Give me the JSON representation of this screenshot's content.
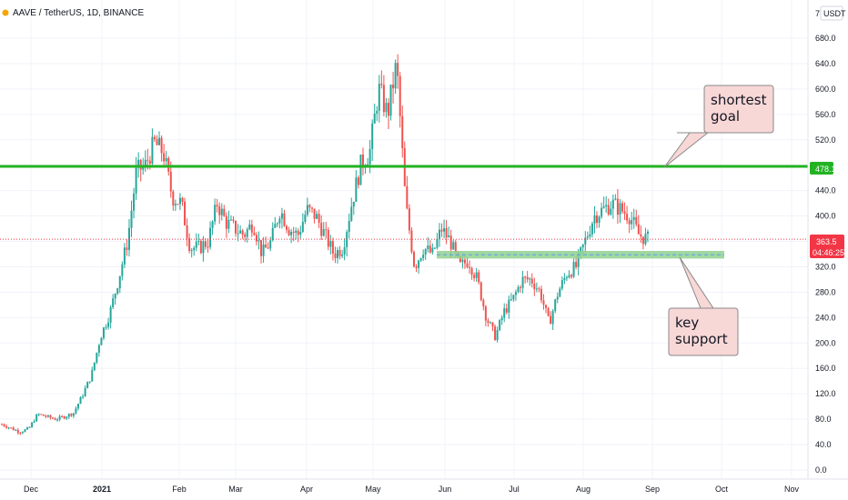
{
  "header": {
    "symbol_title": "AAVE / TetherUS, 1D, BINANCE",
    "currency": "USDT",
    "scale_glyph": "7"
  },
  "chart_data": {
    "type": "candlestick",
    "title": "AAVE / TetherUS, 1D, BINANCE",
    "y_unit": "USDT",
    "ylim": [
      -10,
      700
    ],
    "y_ticks": [
      0,
      40,
      80,
      120,
      160,
      200,
      240,
      280,
      320,
      360,
      400,
      440,
      480,
      520,
      560,
      600,
      640,
      680
    ],
    "y_tick_labels": [
      "0.0",
      "40.0",
      "80.0",
      "120.0",
      "160.0",
      "200.0",
      "240.0",
      "280.0",
      "320.0",
      "",
      "400.0",
      "440.0",
      "",
      "520.0",
      "560.0",
      "600.0",
      "640.0",
      "680.0"
    ],
    "x_labels": [
      "Dec",
      "2021",
      "Feb",
      "Mar",
      "Apr",
      "May",
      "Jun",
      "Jul",
      "Aug",
      "Sep",
      "Oct",
      "Nov"
    ],
    "grid": true,
    "series": [
      {
        "type": "close-path",
        "points": [
          [
            "Nov 25",
            72
          ],
          [
            "Dec 1",
            66
          ],
          [
            "Dec 5",
            60
          ],
          [
            "Dec 10",
            65
          ],
          [
            "Dec 15",
            88
          ],
          [
            "Dec 20",
            84
          ],
          [
            "Dec 26",
            80
          ],
          [
            "Dec 31",
            84
          ],
          [
            "2021-01-05",
            90
          ],
          [
            "Jan 10",
            118
          ],
          [
            "Jan 14",
            150
          ],
          [
            "Jan 18",
            210
          ],
          [
            "Jan 22",
            245
          ],
          [
            "Jan 26",
            300
          ],
          [
            "Jan 30",
            360
          ],
          [
            "Feb 2",
            470
          ],
          [
            "Feb 5",
            480
          ],
          [
            "Feb 9",
            515
          ],
          [
            "Feb 12",
            500
          ],
          [
            "Feb 16",
            430
          ],
          [
            "Feb 19",
            420
          ],
          [
            "Feb 22",
            350
          ],
          [
            "Feb 25",
            350
          ],
          [
            "Mar 1",
            360
          ],
          [
            "Mar 5",
            420
          ],
          [
            "Mar 8",
            390
          ],
          [
            "Mar 12",
            380
          ],
          [
            "Mar 16",
            370
          ],
          [
            "Mar 20",
            390
          ],
          [
            "Mar 24",
            340
          ],
          [
            "Mar 28",
            360
          ],
          [
            "Apr 1",
            410
          ],
          [
            "Apr 4",
            380
          ],
          [
            "Apr 7",
            370
          ],
          [
            "Apr 11",
            410
          ],
          [
            "Apr 14",
            400
          ],
          [
            "Apr 17",
            370
          ],
          [
            "Apr 21",
            340
          ],
          [
            "Apr 25",
            350
          ],
          [
            "Apr 29",
            420
          ],
          [
            "May 3",
            480
          ],
          [
            "May 7",
            500
          ],
          [
            "May 10",
            600
          ],
          [
            "May 13",
            560
          ],
          [
            "May 16",
            640
          ],
          [
            "May 19",
            420
          ],
          [
            "May 23",
            320
          ],
          [
            "May 26",
            350
          ],
          [
            "May 29",
            340
          ],
          [
            "Jun 2",
            380
          ],
          [
            "Jun 6",
            360
          ],
          [
            "Jun 10",
            320
          ],
          [
            "Jun 14",
            330
          ],
          [
            "Jun 18",
            300
          ],
          [
            "Jun 22",
            240
          ],
          [
            "Jun 26",
            210
          ],
          [
            "Jun 30",
            250
          ],
          [
            "Jul 4",
            270
          ],
          [
            "Jul 8",
            300
          ],
          [
            "Jul 12",
            300
          ],
          [
            "Jul 16",
            280
          ],
          [
            "Jul 20",
            230
          ],
          [
            "Jul 24",
            280
          ],
          [
            "Jul 28",
            310
          ],
          [
            "Aug 1",
            320
          ],
          [
            "Aug 5",
            360
          ],
          [
            "Aug 9",
            400
          ],
          [
            "Aug 13",
            410
          ],
          [
            "Aug 17",
            420
          ],
          [
            "Aug 21",
            410
          ],
          [
            "Aug 24",
            400
          ],
          [
            "Aug 27",
            370
          ],
          [
            "Aug 29",
            363.5
          ]
        ],
        "color": "#26a69a / #ef5350"
      }
    ],
    "horizontal_levels": [
      {
        "label": "478.1",
        "value": 478.1,
        "color": "#22b322"
      },
      {
        "label": "363.5",
        "value": 363.5,
        "color": "#f23645",
        "style": "dotted"
      }
    ],
    "zones": [
      {
        "from": 333,
        "to": 345,
        "color": "#8fd18f",
        "name": "key support zone"
      }
    ],
    "price_badges": [
      {
        "text": "478.1",
        "color": "#22b322"
      },
      {
        "text": "363.5",
        "color": "#f23645"
      },
      {
        "text": "04:46:25",
        "color": "#f23645"
      }
    ],
    "annotations": [
      {
        "text_lines": [
          "shortest",
          "goal"
        ]
      },
      {
        "text_lines": [
          "key",
          "support"
        ]
      }
    ]
  },
  "colors": {
    "up": "#26a69a",
    "down": "#ef5350",
    "goal_line": "#22b322",
    "price_line": "#f23645",
    "support_zone": "#8fd18f",
    "callout_fill": "#f8d7d7",
    "grid": "#f0f3fa"
  }
}
